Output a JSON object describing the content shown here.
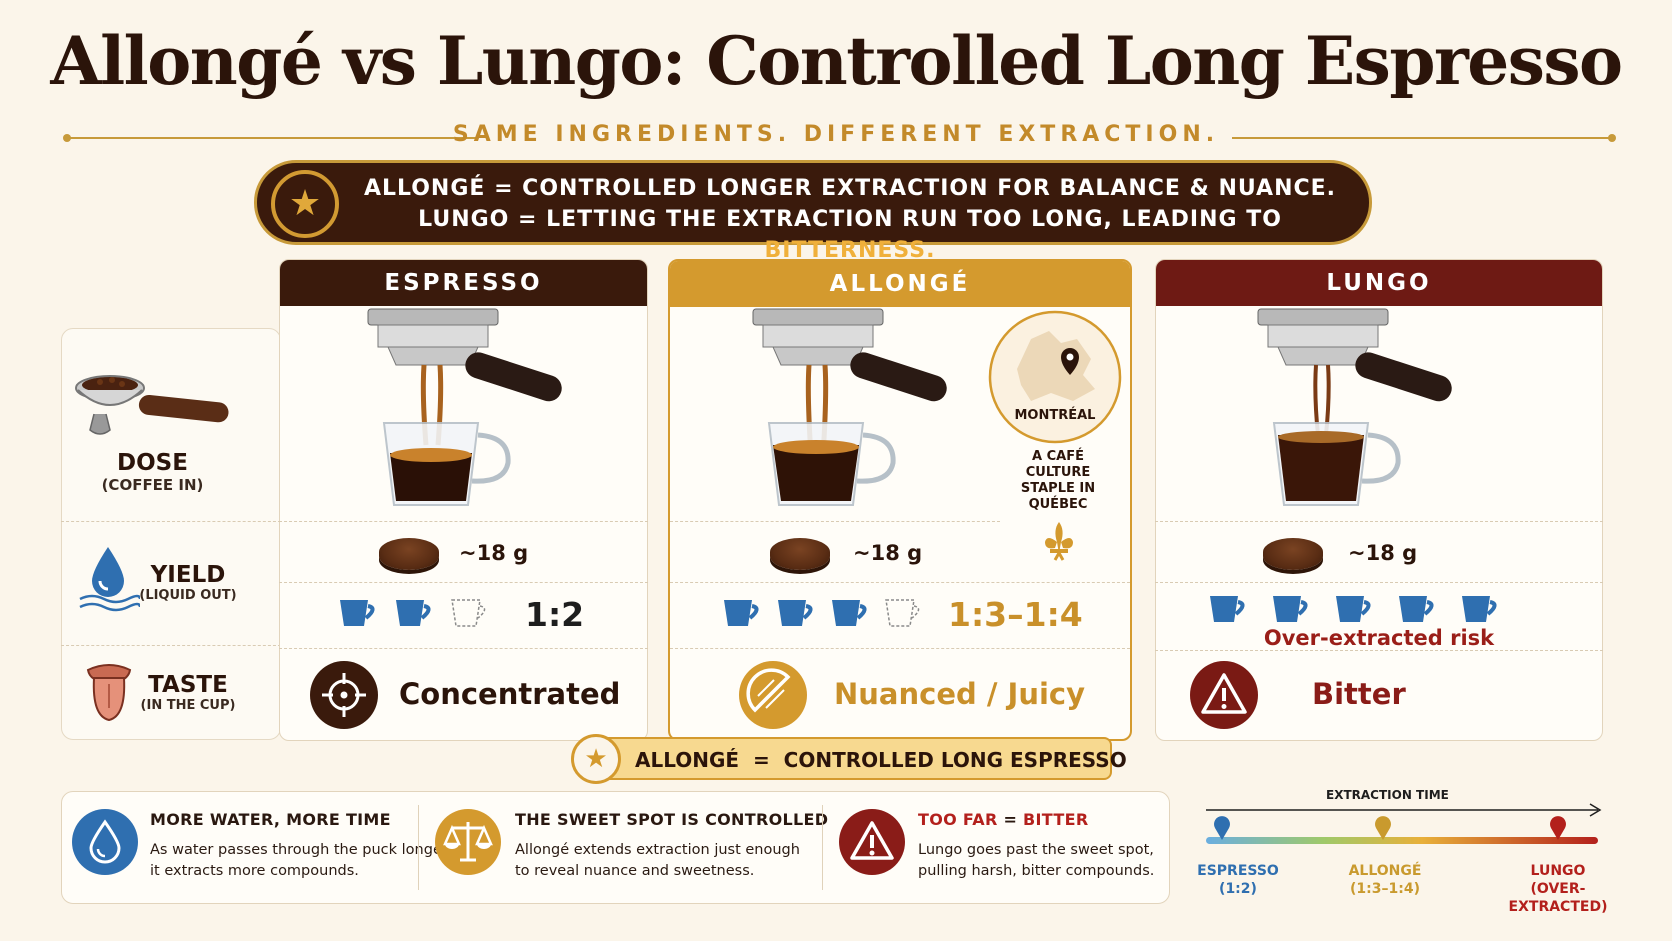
{
  "title": "Allongé vs Lungo: Controlled Long Espresso",
  "subtitle": "SAME INGREDIENTS. DIFFERENT EXTRACTION.",
  "banner": {
    "line1": "ALLONGÉ =  CONTROLLED LONGER EXTRACTION FOR BALANCE & NUANCE.",
    "line2_prefix": "LUNGO = LETTING THE EXTRACTION RUN TOO LONG, LEADING TO ",
    "line2_highlight": "BITTERNESS.",
    "icon": "star-icon"
  },
  "rows": {
    "dose": {
      "label": "DOSE",
      "sub": "(COFFEE IN)",
      "icon": "portafilter-icon"
    },
    "yield": {
      "label": "YIELD",
      "sub": "(LIQUID OUT)",
      "icon": "water-drop-icon"
    },
    "taste": {
      "label": "TASTE",
      "sub": "(IN THE CUP)",
      "icon": "tongue-icon"
    }
  },
  "columns": {
    "espresso": {
      "header": "ESPRESSO",
      "dose": "~18 g",
      "ratio": "1:2",
      "cups_filled": 2,
      "cups_total": 3,
      "taste": "Concentrated",
      "taste_icon": "target-icon",
      "color": "#3a1a0c"
    },
    "allonge": {
      "header": "ALLONGÉ",
      "dose": "~18 g",
      "ratio": "1:3–1:4",
      "cups_filled": 3,
      "cups_total": 4,
      "taste": "Nuanced / Juicy",
      "taste_icon": "citrus-icon",
      "color": "#d49a2e"
    },
    "lungo": {
      "header": "LUNGO",
      "dose": "~18 g",
      "ratio_note": "Over-extracted risk",
      "cups_filled": 5,
      "cups_total": 5,
      "taste": "Bitter",
      "taste_icon": "warning-icon",
      "color": "#6e1a14"
    }
  },
  "montreal": {
    "label": "MONTRÉAL",
    "note": "A CAFÉ CULTURE STAPLE IN QUÉBEC",
    "icons": [
      "map-pin-icon",
      "fleur-de-lis-icon"
    ]
  },
  "footer_label": "ALLONGÉ  =  CONTROLLED LONG ESPRESSO",
  "notes": [
    {
      "title": "MORE WATER, MORE TIME",
      "body1": "As water passes through the puck longer,",
      "body2": "it extracts more compounds.",
      "icon": "water-drop-icon",
      "color": "#2f6fb0"
    },
    {
      "title": "THE SWEET SPOT IS CONTROLLED",
      "body1": "Allongé extends extraction just enough",
      "body2": "to reveal nuance and sweetness.",
      "icon": "scale-icon",
      "color": "#d49a2e"
    },
    {
      "title_prefix": "TOO FAR",
      "title_eq": " = ",
      "title_suffix": "BITTER",
      "body1": "Lungo goes past the sweet spot,",
      "body2": "pulling harsh, bitter compounds.",
      "icon": "warning-icon",
      "color": "#8a1c18"
    }
  ],
  "timeline": {
    "label": "EXTRACTION TIME",
    "stops": [
      {
        "name": "ESPRESSO",
        "detail": "(1:2)",
        "color": "#2f6fb0"
      },
      {
        "name": "ALLONGÉ",
        "detail": "(1:3–1:4)",
        "color": "#c99a2e"
      },
      {
        "name": "LUNGO",
        "detail": "(OVER-EXTRACTED)",
        "color": "#b3201c"
      }
    ]
  },
  "colors": {
    "dark_brown": "#3a1a0c",
    "gold": "#d49a2e",
    "maroon": "#6e1a14",
    "blue": "#2f6fb0",
    "red": "#b3201c"
  }
}
